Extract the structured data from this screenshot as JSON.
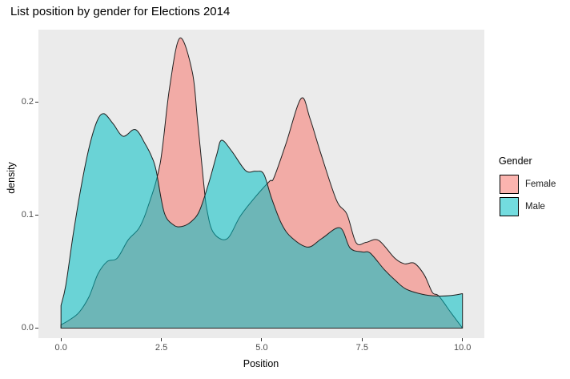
{
  "title": "List position by gender for Elections 2014",
  "chart_data": {
    "type": "area",
    "title": "List position by gender for Elections 2014",
    "xlabel": "Position",
    "ylabel": "density",
    "xlim": [
      0,
      10
    ],
    "ylim": [
      0,
      0.26
    ],
    "grid": false,
    "panel_background": "#EBEBEB",
    "x_ticks": [
      {
        "value": 0.0,
        "label": "0.0"
      },
      {
        "value": 2.5,
        "label": "2.5"
      },
      {
        "value": 5.0,
        "label": "5.0"
      },
      {
        "value": 7.5,
        "label": "7.5"
      },
      {
        "value": 10.0,
        "label": "10.0"
      }
    ],
    "y_ticks": [
      {
        "value": 0.0,
        "label": "0.0"
      },
      {
        "value": 0.1,
        "label": "0.1"
      },
      {
        "value": 0.2,
        "label": "0.2"
      }
    ],
    "legend_title": "Gender",
    "legend_position": "right",
    "series": [
      {
        "name": "Female",
        "color": "#F8766D",
        "fill_opacity": 0.55,
        "points": [
          [
            0,
            0.003
          ],
          [
            0.2,
            0.007
          ],
          [
            0.45,
            0.014
          ],
          [
            0.7,
            0.028
          ],
          [
            0.92,
            0.048
          ],
          [
            1.15,
            0.059
          ],
          [
            1.4,
            0.062
          ],
          [
            1.67,
            0.078
          ],
          [
            1.95,
            0.089
          ],
          [
            2.17,
            0.108
          ],
          [
            2.47,
            0.146
          ],
          [
            2.7,
            0.212
          ],
          [
            2.96,
            0.257
          ],
          [
            3.27,
            0.227
          ],
          [
            3.4,
            0.184
          ],
          [
            3.55,
            0.13
          ],
          [
            3.63,
            0.106
          ],
          [
            3.79,
            0.085
          ],
          [
            4.13,
            0.079
          ],
          [
            4.46,
            0.099
          ],
          [
            4.8,
            0.1145
          ],
          [
            5.19,
            0.13
          ],
          [
            5.3,
            0.133
          ],
          [
            5.6,
            0.163
          ],
          [
            5.98,
            0.2035
          ],
          [
            6.2,
            0.186
          ],
          [
            6.46,
            0.156
          ],
          [
            6.86,
            0.1135
          ],
          [
            7.12,
            0.101
          ],
          [
            7.35,
            0.0757
          ],
          [
            7.6,
            0.076
          ],
          [
            7.91,
            0.0778
          ],
          [
            8.3,
            0.0625
          ],
          [
            8.55,
            0.057
          ],
          [
            8.8,
            0.0575
          ],
          [
            9.05,
            0.047
          ],
          [
            9.25,
            0.0316
          ],
          [
            9.41,
            0.0285
          ],
          [
            9.71,
            0.0138
          ],
          [
            9.98,
            0.001
          ]
        ]
      },
      {
        "name": "Male",
        "color": "#00BFC4",
        "fill_opacity": 0.55,
        "points": [
          [
            0,
            0.02
          ],
          [
            0.12,
            0.038
          ],
          [
            0.3,
            0.082
          ],
          [
            0.5,
            0.125
          ],
          [
            0.7,
            0.16
          ],
          [
            0.9,
            0.1835
          ],
          [
            1.07,
            0.19
          ],
          [
            1.3,
            0.181
          ],
          [
            1.55,
            0.17
          ],
          [
            1.85,
            0.176
          ],
          [
            2.1,
            0.163
          ],
          [
            2.27,
            0.151
          ],
          [
            2.37,
            0.1395
          ],
          [
            2.57,
            0.1025
          ],
          [
            2.8,
            0.0915
          ],
          [
            3.0,
            0.09
          ],
          [
            3.23,
            0.094
          ],
          [
            3.45,
            0.104
          ],
          [
            3.7,
            0.131
          ],
          [
            3.88,
            0.154
          ],
          [
            4.0,
            0.1665
          ],
          [
            4.25,
            0.157
          ],
          [
            4.6,
            0.1395
          ],
          [
            4.85,
            0.139
          ],
          [
            5.05,
            0.1365
          ],
          [
            5.25,
            0.1145
          ],
          [
            5.5,
            0.092
          ],
          [
            5.75,
            0.08
          ],
          [
            6.15,
            0.0718
          ],
          [
            6.5,
            0.0795
          ],
          [
            6.95,
            0.0889
          ],
          [
            7.2,
            0.071
          ],
          [
            7.5,
            0.0675
          ],
          [
            7.7,
            0.0665
          ],
          [
            8.05,
            0.052
          ],
          [
            8.35,
            0.0415
          ],
          [
            8.6,
            0.0345
          ],
          [
            9.0,
            0.03
          ],
          [
            9.35,
            0.0285
          ],
          [
            9.7,
            0.0288
          ],
          [
            10,
            0.0305
          ]
        ]
      }
    ]
  }
}
